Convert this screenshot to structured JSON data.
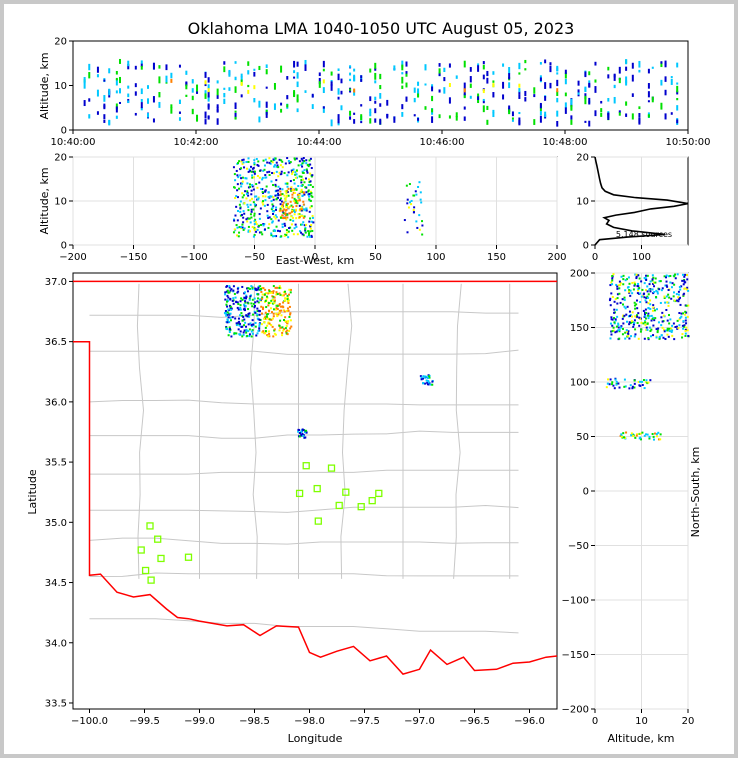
{
  "figure": {
    "title": "Oklahoma LMA 1040-1050 UTC August 05, 2023"
  },
  "chart_data": [
    {
      "panel": "time-height",
      "type": "scatter",
      "ylabel": "Altitude, km",
      "ylim": [
        0,
        20
      ],
      "yticks": [
        "0",
        "10",
        "20"
      ],
      "xticks": [
        "10:40:00",
        "10:42:00",
        "10:44:00",
        "10:46:00",
        "10:48:00",
        "10:50:00"
      ],
      "note": "density of sources vs time and altitude, sources mostly between 2 and 16 km"
    },
    {
      "panel": "east-west-altitude",
      "type": "heatmap",
      "xlabel": "East-West, km",
      "ylabel": "Altitude, km",
      "xlim": [
        -200,
        200
      ],
      "ylim": [
        0,
        20
      ],
      "xticks": [
        "−200",
        "−150",
        "−100",
        "−50",
        "0",
        "50",
        "100",
        "150",
        "200"
      ],
      "yticks": [
        "0",
        "10",
        "20"
      ],
      "clusters": [
        {
          "x": [
            -68,
            -2
          ],
          "y": [
            2,
            20
          ]
        },
        {
          "x": [
            -30,
            -10
          ],
          "y": [
            6,
            13
          ]
        },
        {
          "x": [
            73,
            88
          ],
          "y": [
            2,
            15
          ]
        }
      ]
    },
    {
      "panel": "altitude-histogram",
      "type": "line",
      "xticks": [
        "0",
        "100"
      ],
      "yticks": [
        "0",
        "10",
        "20"
      ],
      "annotation": "5,148 sources",
      "xlim": [
        0,
        200
      ],
      "ylim": [
        0,
        20
      ],
      "points": [
        [
          0,
          0
        ],
        [
          10,
          1.2
        ],
        [
          70,
          1.8
        ],
        [
          150,
          2.4
        ],
        [
          80,
          3.2
        ],
        [
          40,
          4.0
        ],
        [
          25,
          4.8
        ],
        [
          30,
          5.6
        ],
        [
          20,
          6.2
        ],
        [
          45,
          6.8
        ],
        [
          85,
          7.4
        ],
        [
          120,
          8.2
        ],
        [
          170,
          8.8
        ],
        [
          200,
          9.4
        ],
        [
          155,
          10.2
        ],
        [
          85,
          10.8
        ],
        [
          40,
          11.4
        ],
        [
          22,
          12.2
        ],
        [
          15,
          13.0
        ],
        [
          12,
          14.0
        ],
        [
          10,
          15.0
        ],
        [
          8,
          16.0
        ],
        [
          6,
          17.0
        ],
        [
          4,
          18.0
        ],
        [
          2,
          19.0
        ],
        [
          0,
          20
        ]
      ]
    },
    {
      "panel": "plan-view",
      "type": "scatter",
      "xlabel": "Longitude",
      "ylabel": "Latitude",
      "xlim": [
        -100.15,
        -95.75
      ],
      "ylim": [
        33.45,
        37.07
      ],
      "xticks": [
        "−100.0",
        "−99.5",
        "−99.0",
        "−98.5",
        "−98.0",
        "−97.5",
        "−97.0",
        "−96.5",
        "−96.0"
      ],
      "yticks": [
        "33.5",
        "34.0",
        "34.5",
        "35.0",
        "35.5",
        "36.0",
        "36.5",
        "37.0"
      ],
      "stations": [
        [
          -98.03,
          35.47
        ],
        [
          -97.8,
          35.45
        ],
        [
          -98.09,
          35.24
        ],
        [
          -97.93,
          35.28
        ],
        [
          -97.67,
          35.25
        ],
        [
          -97.37,
          35.24
        ],
        [
          -97.43,
          35.18
        ],
        [
          -97.73,
          35.14
        ],
        [
          -97.53,
          35.13
        ],
        [
          -97.92,
          35.01
        ],
        [
          -99.45,
          34.97
        ],
        [
          -99.38,
          34.86
        ],
        [
          -99.53,
          34.77
        ],
        [
          -99.35,
          34.7
        ],
        [
          -99.1,
          34.71
        ],
        [
          -99.49,
          34.6
        ],
        [
          -99.44,
          34.52
        ]
      ],
      "clusters": [
        {
          "lon": [
            -98.78,
            -98.17
          ],
          "lat": [
            36.55,
            36.97
          ]
        },
        {
          "lon": [
            -97.0,
            -96.88
          ],
          "lat": [
            36.15,
            36.23
          ]
        },
        {
          "lon": [
            -98.12,
            -98.03
          ],
          "lat": [
            35.71,
            35.78
          ]
        }
      ],
      "colors": {
        "state_border": "#ff0000",
        "county_lines": "#c8c8c8",
        "stations": "#7fff00"
      }
    },
    {
      "panel": "altitude-north-south",
      "type": "heatmap",
      "xlabel": "Altitude, km",
      "ylabel": "North-South, km",
      "xlim": [
        0,
        20
      ],
      "ylim": [
        -200,
        200
      ],
      "xticks": [
        "0",
        "10",
        "20"
      ],
      "yticks": [
        "−200",
        "−150",
        "−100",
        "−50",
        "0",
        "50",
        "100",
        "150",
        "200"
      ],
      "clusters": [
        {
          "alt": [
            3,
            20
          ],
          "ns": [
            140,
            200
          ]
        },
        {
          "alt": [
            2,
            12
          ],
          "ns": [
            95,
            104
          ]
        },
        {
          "alt": [
            5,
            14
          ],
          "ns": [
            48,
            55
          ]
        }
      ]
    }
  ]
}
